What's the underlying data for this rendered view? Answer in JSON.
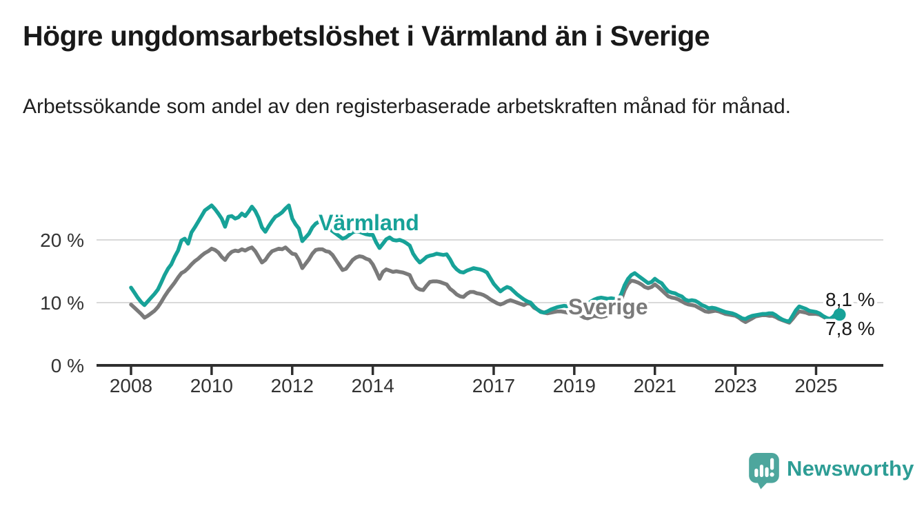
{
  "page": {
    "title": "Högre ungdomsarbetslöshet i Värmland än i Sverige",
    "subtitle": "Arbetssökande som andel av den registerbaserade arbetskraften månad för månad."
  },
  "chart_data": {
    "type": "line",
    "title": "Högre ungdomsarbetslöshet i Värmland än i Sverige",
    "subtitle": "Arbetssökande som andel av den registerbaserade arbetskraften månad för månad.",
    "x_start": "2008-01",
    "x_end": "2025-08",
    "frequency": "monthly",
    "grid": true,
    "ylim": [
      0,
      27
    ],
    "y_axis": {
      "ticks": [
        {
          "value": 0,
          "label": "0 %"
        },
        {
          "value": 10,
          "label": "10 %"
        },
        {
          "value": 20,
          "label": "20 %"
        }
      ]
    },
    "x_axis": {
      "tick_years": [
        2008,
        2010,
        2012,
        2014,
        2017,
        2019,
        2021,
        2023,
        2025
      ]
    },
    "series": [
      {
        "name": "Sverige",
        "color": "#7a7a7a",
        "end_label": "7,8 %",
        "end_dot": false,
        "values": [
          9.7,
          9.2,
          8.7,
          8.2,
          7.6,
          7.9,
          8.3,
          8.7,
          9.3,
          10.1,
          11.0,
          11.8,
          12.5,
          13.2,
          14.0,
          14.7,
          15.0,
          15.5,
          16.1,
          16.6,
          17.0,
          17.5,
          17.9,
          18.2,
          18.6,
          18.4,
          18.0,
          17.3,
          16.8,
          17.6,
          18.1,
          18.3,
          18.2,
          18.5,
          18.3,
          18.6,
          18.8,
          18.2,
          17.3,
          16.4,
          16.8,
          17.6,
          18.2,
          18.4,
          18.6,
          18.5,
          18.8,
          18.3,
          17.8,
          17.7,
          16.8,
          15.5,
          16.2,
          16.9,
          17.8,
          18.4,
          18.5,
          18.5,
          18.2,
          18.1,
          17.6,
          16.8,
          16.0,
          15.2,
          15.4,
          16.1,
          16.8,
          17.2,
          17.4,
          17.3,
          17.0,
          16.8,
          16.1,
          15.0,
          13.8,
          14.9,
          15.3,
          15.1,
          14.9,
          15.0,
          14.9,
          14.8,
          14.6,
          14.4,
          13.2,
          12.4,
          12.1,
          12.0,
          12.7,
          13.3,
          13.4,
          13.4,
          13.3,
          13.1,
          12.9,
          12.2,
          11.8,
          11.3,
          11.0,
          10.9,
          11.4,
          11.7,
          11.7,
          11.5,
          11.4,
          11.2,
          10.9,
          10.5,
          10.2,
          9.9,
          9.7,
          9.9,
          10.2,
          10.4,
          10.2,
          10.0,
          9.8,
          9.6,
          9.9,
          9.8,
          9.2,
          8.9,
          8.6,
          8.4,
          8.3,
          8.4,
          8.5,
          8.6,
          8.6,
          8.5,
          8.4,
          8.5,
          8.6,
          8.2,
          7.9,
          7.6,
          7.5,
          7.7,
          7.9,
          7.8,
          7.7,
          7.8,
          8.0,
          8.3,
          8.8,
          9.2,
          10.5,
          12.0,
          13.0,
          13.5,
          13.4,
          13.2,
          12.9,
          12.5,
          12.3,
          12.5,
          12.9,
          12.5,
          12.0,
          11.5,
          11.0,
          10.8,
          10.7,
          10.5,
          10.2,
          9.9,
          9.7,
          9.6,
          9.5,
          9.2,
          8.9,
          8.6,
          8.5,
          8.6,
          8.7,
          8.6,
          8.4,
          8.2,
          8.1,
          8.0,
          7.9,
          7.6,
          7.2,
          6.9,
          7.2,
          7.5,
          7.8,
          7.9,
          8.0,
          8.0,
          7.9,
          7.9,
          7.7,
          7.4,
          7.2,
          7.0,
          6.8,
          7.4,
          8.1,
          8.6,
          8.5,
          8.4,
          8.2,
          8.2,
          8.2,
          8.1,
          7.8,
          7.5,
          7.3,
          7.5,
          7.9,
          7.8
        ]
      },
      {
        "name": "Värmland",
        "color": "#17a298",
        "end_label": "8,1 %",
        "end_dot": true,
        "values": [
          12.4,
          11.6,
          10.8,
          10.1,
          9.6,
          10.2,
          10.8,
          11.4,
          12.1,
          13.2,
          14.4,
          15.4,
          16.1,
          17.3,
          18.3,
          19.9,
          20.2,
          19.4,
          21.2,
          22.0,
          22.9,
          23.8,
          24.7,
          25.1,
          25.5,
          24.9,
          24.2,
          23.4,
          22.1,
          23.7,
          23.8,
          23.4,
          23.6,
          24.2,
          23.8,
          24.5,
          25.3,
          24.6,
          23.5,
          22.0,
          21.3,
          22.2,
          23.0,
          23.7,
          24.0,
          24.4,
          25.0,
          25.5,
          23.4,
          22.5,
          21.8,
          19.8,
          20.4,
          21.0,
          22.0,
          22.6,
          22.9,
          22.5,
          22.1,
          21.8,
          21.4,
          21.0,
          20.6,
          20.2,
          20.4,
          20.8,
          21.2,
          21.4,
          21.3,
          21.1,
          20.9,
          20.8,
          20.8,
          19.6,
          18.7,
          19.4,
          20.1,
          20.4,
          20.0,
          19.9,
          20.0,
          19.8,
          19.5,
          19.1,
          17.8,
          17.0,
          16.4,
          16.8,
          17.3,
          17.5,
          17.6,
          17.8,
          17.7,
          17.6,
          17.7,
          16.9,
          15.9,
          15.3,
          14.9,
          14.8,
          15.1,
          15.3,
          15.5,
          15.4,
          15.3,
          15.1,
          14.8,
          13.9,
          13.0,
          12.4,
          11.8,
          12.2,
          12.5,
          12.3,
          11.8,
          11.3,
          10.9,
          10.5,
          10.2,
          10.0,
          9.4,
          8.9,
          8.5,
          8.4,
          8.6,
          8.9,
          9.1,
          9.3,
          9.4,
          9.5,
          9.4,
          9.4,
          9.4,
          9.3,
          9.3,
          9.5,
          9.8,
          10.2,
          10.5,
          10.7,
          10.8,
          10.7,
          10.6,
          10.7,
          10.6,
          10.4,
          11.4,
          12.8,
          13.8,
          14.4,
          14.7,
          14.3,
          13.9,
          13.5,
          13.1,
          13.3,
          13.8,
          13.4,
          13.1,
          12.4,
          11.8,
          11.6,
          11.5,
          11.2,
          11.0,
          10.5,
          10.3,
          10.4,
          10.3,
          10.0,
          9.6,
          9.4,
          9.1,
          9.2,
          9.1,
          8.9,
          8.7,
          8.5,
          8.4,
          8.3,
          8.1,
          7.8,
          7.5,
          7.4,
          7.7,
          7.9,
          8.0,
          8.1,
          8.2,
          8.2,
          8.3,
          8.3,
          8.0,
          7.6,
          7.3,
          7.1,
          7.0,
          7.9,
          8.8,
          9.4,
          9.2,
          9.0,
          8.7,
          8.6,
          8.5,
          8.3,
          7.9,
          7.6,
          7.4,
          7.7,
          8.3,
          8.1
        ]
      }
    ]
  },
  "logo": {
    "text": "Newsworthy",
    "icon": "newsworthy-speech-bubble-bar-chart-icon",
    "icon_color": "#4da69d",
    "text_color": "#2d9d95"
  },
  "colors": {
    "varmland": "#17a298",
    "sverige": "#7a7a7a",
    "axis": "#2e2e2e",
    "gridline": "#d9d9d9",
    "text": "#191919"
  }
}
